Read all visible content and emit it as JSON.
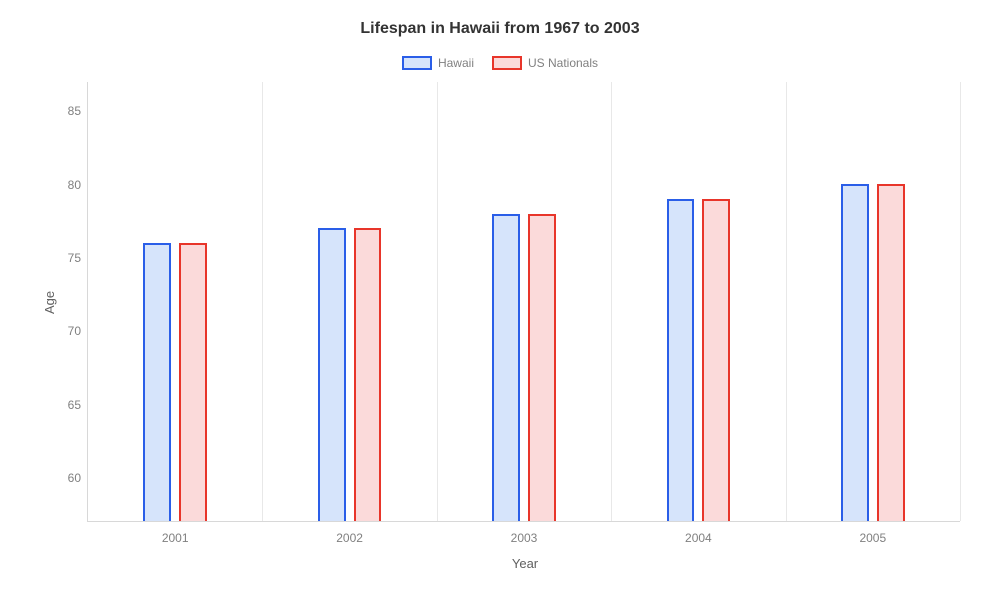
{
  "chart": {
    "type": "bar",
    "title": "Lifespan in Hawaii from 1967 to 2003",
    "title_fontsize": 16,
    "title_color": "#333333",
    "background_color": "#ffffff",
    "x_axis": {
      "title": "Year",
      "categories": [
        "2001",
        "2002",
        "2003",
        "2004",
        "2005"
      ],
      "label_fontsize": 12,
      "label_color": "#808080",
      "title_fontsize": 13,
      "title_color": "#606060"
    },
    "y_axis": {
      "title": "Age",
      "min": 57,
      "max": 87,
      "ticks": [
        60,
        65,
        70,
        75,
        80,
        85
      ],
      "label_fontsize": 12,
      "label_color": "#808080",
      "title_fontsize": 13,
      "title_color": "#606060"
    },
    "series": [
      {
        "name": "Hawaii",
        "values": [
          76,
          77,
          78,
          79,
          80
        ],
        "fill_color": "#d6e4fb",
        "border_color": "#2a5ee8",
        "border_width": 2
      },
      {
        "name": "US Nationals",
        "values": [
          76,
          77,
          78,
          79,
          80
        ],
        "fill_color": "#fbdada",
        "border_color": "#e8352a",
        "border_width": 2
      }
    ],
    "bar_width_pct": 3.2,
    "bar_gap_pct": 0.9,
    "grid_color": "#e8e8e8",
    "legend": {
      "position": "top",
      "fontsize": 12,
      "text_color": "#808080",
      "swatch_width": 30,
      "swatch_height": 14
    }
  }
}
